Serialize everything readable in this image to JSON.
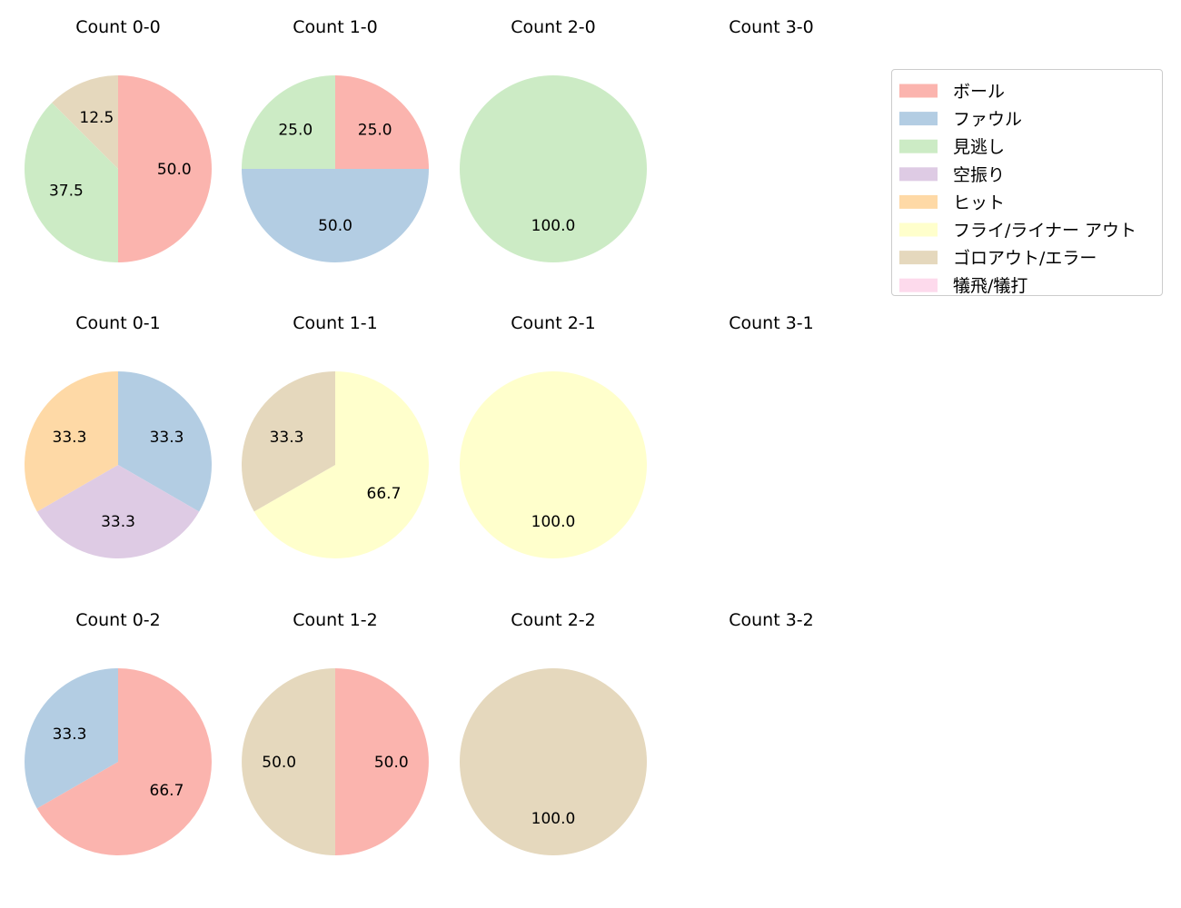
{
  "chart_data": {
    "type": "pie",
    "legend": {
      "placement": "upper right",
      "entries": [
        {
          "label": "ボール",
          "color": "#fbb4ae"
        },
        {
          "label": "ファウル",
          "color": "#b3cde3"
        },
        {
          "label": "見逃し",
          "color": "#ccebc5"
        },
        {
          "label": "空振り",
          "color": "#decbe4"
        },
        {
          "label": "ヒット",
          "color": "#fed9a6"
        },
        {
          "label": "フライ/ライナー アウト",
          "color": "#ffffcc"
        },
        {
          "label": "ゴロアウト/エラー",
          "color": "#e5d8bd"
        },
        {
          "label": "犠飛/犠打",
          "color": "#fddaec"
        }
      ]
    },
    "charts": [
      {
        "title": "Count 0-0",
        "slices": [
          {
            "category": "ボール",
            "value": 50.0
          },
          {
            "category": "見逃し",
            "value": 37.5
          },
          {
            "category": "ゴロアウト/エラー",
            "value": 12.5
          }
        ]
      },
      {
        "title": "Count 1-0",
        "slices": [
          {
            "category": "ボール",
            "value": 25.0
          },
          {
            "category": "ファウル",
            "value": 50.0
          },
          {
            "category": "見逃し",
            "value": 25.0
          }
        ]
      },
      {
        "title": "Count 2-0",
        "slices": [
          {
            "category": "見逃し",
            "value": 100.0
          }
        ]
      },
      {
        "title": "Count 3-0",
        "slices": []
      },
      {
        "title": "Count 0-1",
        "slices": [
          {
            "category": "ファウル",
            "value": 33.3
          },
          {
            "category": "空振り",
            "value": 33.3
          },
          {
            "category": "ヒット",
            "value": 33.3
          }
        ]
      },
      {
        "title": "Count 1-1",
        "slices": [
          {
            "category": "フライ/ライナー アウト",
            "value": 66.7
          },
          {
            "category": "ゴロアウト/エラー",
            "value": 33.3
          }
        ]
      },
      {
        "title": "Count 2-1",
        "slices": [
          {
            "category": "フライ/ライナー アウト",
            "value": 100.0
          }
        ]
      },
      {
        "title": "Count 3-1",
        "slices": []
      },
      {
        "title": "Count 0-2",
        "slices": [
          {
            "category": "ボール",
            "value": 66.7
          },
          {
            "category": "ファウル",
            "value": 33.3
          }
        ]
      },
      {
        "title": "Count 1-2",
        "slices": [
          {
            "category": "ボール",
            "value": 50.0
          },
          {
            "category": "ゴロアウト/エラー",
            "value": 50.0
          }
        ]
      },
      {
        "title": "Count 2-2",
        "slices": [
          {
            "category": "ゴロアウト/エラー",
            "value": 100.0
          }
        ]
      },
      {
        "title": "Count 3-2",
        "slices": []
      }
    ]
  }
}
